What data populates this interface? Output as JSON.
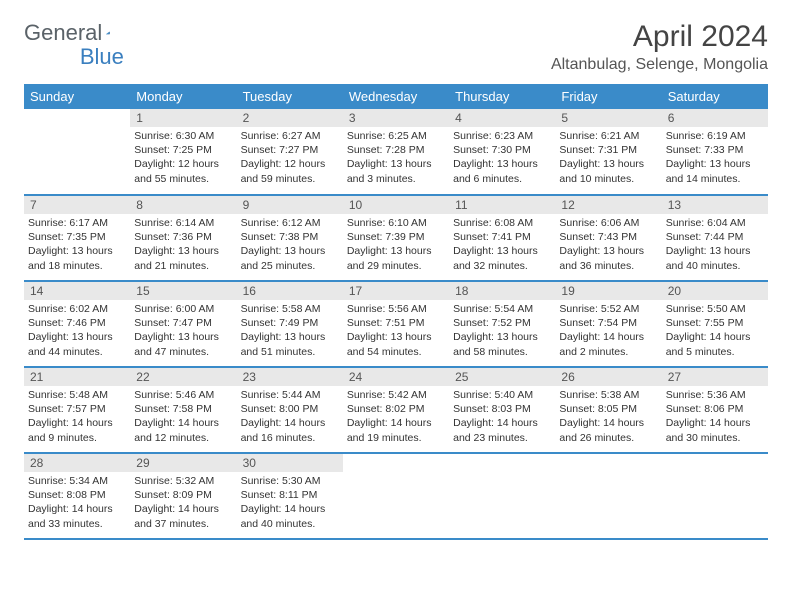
{
  "logo": {
    "part1": "General",
    "part2": "Blue"
  },
  "title": "April 2024",
  "location": "Altanbulag, Selenge, Mongolia",
  "colors": {
    "header_bg": "#3a8bc9",
    "header_text": "#ffffff",
    "daynum_bg": "#e8e8e8",
    "border": "#3a8bc9",
    "logo_gray": "#5a6268",
    "logo_blue": "#3a7fbf"
  },
  "day_names": [
    "Sunday",
    "Monday",
    "Tuesday",
    "Wednesday",
    "Thursday",
    "Friday",
    "Saturday"
  ],
  "weeks": [
    [
      {
        "n": "",
        "sr": "",
        "ss": "",
        "dl": ""
      },
      {
        "n": "1",
        "sr": "Sunrise: 6:30 AM",
        "ss": "Sunset: 7:25 PM",
        "dl": "Daylight: 12 hours and 55 minutes."
      },
      {
        "n": "2",
        "sr": "Sunrise: 6:27 AM",
        "ss": "Sunset: 7:27 PM",
        "dl": "Daylight: 12 hours and 59 minutes."
      },
      {
        "n": "3",
        "sr": "Sunrise: 6:25 AM",
        "ss": "Sunset: 7:28 PM",
        "dl": "Daylight: 13 hours and 3 minutes."
      },
      {
        "n": "4",
        "sr": "Sunrise: 6:23 AM",
        "ss": "Sunset: 7:30 PM",
        "dl": "Daylight: 13 hours and 6 minutes."
      },
      {
        "n": "5",
        "sr": "Sunrise: 6:21 AM",
        "ss": "Sunset: 7:31 PM",
        "dl": "Daylight: 13 hours and 10 minutes."
      },
      {
        "n": "6",
        "sr": "Sunrise: 6:19 AM",
        "ss": "Sunset: 7:33 PM",
        "dl": "Daylight: 13 hours and 14 minutes."
      }
    ],
    [
      {
        "n": "7",
        "sr": "Sunrise: 6:17 AM",
        "ss": "Sunset: 7:35 PM",
        "dl": "Daylight: 13 hours and 18 minutes."
      },
      {
        "n": "8",
        "sr": "Sunrise: 6:14 AM",
        "ss": "Sunset: 7:36 PM",
        "dl": "Daylight: 13 hours and 21 minutes."
      },
      {
        "n": "9",
        "sr": "Sunrise: 6:12 AM",
        "ss": "Sunset: 7:38 PM",
        "dl": "Daylight: 13 hours and 25 minutes."
      },
      {
        "n": "10",
        "sr": "Sunrise: 6:10 AM",
        "ss": "Sunset: 7:39 PM",
        "dl": "Daylight: 13 hours and 29 minutes."
      },
      {
        "n": "11",
        "sr": "Sunrise: 6:08 AM",
        "ss": "Sunset: 7:41 PM",
        "dl": "Daylight: 13 hours and 32 minutes."
      },
      {
        "n": "12",
        "sr": "Sunrise: 6:06 AM",
        "ss": "Sunset: 7:43 PM",
        "dl": "Daylight: 13 hours and 36 minutes."
      },
      {
        "n": "13",
        "sr": "Sunrise: 6:04 AM",
        "ss": "Sunset: 7:44 PM",
        "dl": "Daylight: 13 hours and 40 minutes."
      }
    ],
    [
      {
        "n": "14",
        "sr": "Sunrise: 6:02 AM",
        "ss": "Sunset: 7:46 PM",
        "dl": "Daylight: 13 hours and 44 minutes."
      },
      {
        "n": "15",
        "sr": "Sunrise: 6:00 AM",
        "ss": "Sunset: 7:47 PM",
        "dl": "Daylight: 13 hours and 47 minutes."
      },
      {
        "n": "16",
        "sr": "Sunrise: 5:58 AM",
        "ss": "Sunset: 7:49 PM",
        "dl": "Daylight: 13 hours and 51 minutes."
      },
      {
        "n": "17",
        "sr": "Sunrise: 5:56 AM",
        "ss": "Sunset: 7:51 PM",
        "dl": "Daylight: 13 hours and 54 minutes."
      },
      {
        "n": "18",
        "sr": "Sunrise: 5:54 AM",
        "ss": "Sunset: 7:52 PM",
        "dl": "Daylight: 13 hours and 58 minutes."
      },
      {
        "n": "19",
        "sr": "Sunrise: 5:52 AM",
        "ss": "Sunset: 7:54 PM",
        "dl": "Daylight: 14 hours and 2 minutes."
      },
      {
        "n": "20",
        "sr": "Sunrise: 5:50 AM",
        "ss": "Sunset: 7:55 PM",
        "dl": "Daylight: 14 hours and 5 minutes."
      }
    ],
    [
      {
        "n": "21",
        "sr": "Sunrise: 5:48 AM",
        "ss": "Sunset: 7:57 PM",
        "dl": "Daylight: 14 hours and 9 minutes."
      },
      {
        "n": "22",
        "sr": "Sunrise: 5:46 AM",
        "ss": "Sunset: 7:58 PM",
        "dl": "Daylight: 14 hours and 12 minutes."
      },
      {
        "n": "23",
        "sr": "Sunrise: 5:44 AM",
        "ss": "Sunset: 8:00 PM",
        "dl": "Daylight: 14 hours and 16 minutes."
      },
      {
        "n": "24",
        "sr": "Sunrise: 5:42 AM",
        "ss": "Sunset: 8:02 PM",
        "dl": "Daylight: 14 hours and 19 minutes."
      },
      {
        "n": "25",
        "sr": "Sunrise: 5:40 AM",
        "ss": "Sunset: 8:03 PM",
        "dl": "Daylight: 14 hours and 23 minutes."
      },
      {
        "n": "26",
        "sr": "Sunrise: 5:38 AM",
        "ss": "Sunset: 8:05 PM",
        "dl": "Daylight: 14 hours and 26 minutes."
      },
      {
        "n": "27",
        "sr": "Sunrise: 5:36 AM",
        "ss": "Sunset: 8:06 PM",
        "dl": "Daylight: 14 hours and 30 minutes."
      }
    ],
    [
      {
        "n": "28",
        "sr": "Sunrise: 5:34 AM",
        "ss": "Sunset: 8:08 PM",
        "dl": "Daylight: 14 hours and 33 minutes."
      },
      {
        "n": "29",
        "sr": "Sunrise: 5:32 AM",
        "ss": "Sunset: 8:09 PM",
        "dl": "Daylight: 14 hours and 37 minutes."
      },
      {
        "n": "30",
        "sr": "Sunrise: 5:30 AM",
        "ss": "Sunset: 8:11 PM",
        "dl": "Daylight: 14 hours and 40 minutes."
      },
      {
        "n": "",
        "sr": "",
        "ss": "",
        "dl": ""
      },
      {
        "n": "",
        "sr": "",
        "ss": "",
        "dl": ""
      },
      {
        "n": "",
        "sr": "",
        "ss": "",
        "dl": ""
      },
      {
        "n": "",
        "sr": "",
        "ss": "",
        "dl": ""
      }
    ]
  ]
}
